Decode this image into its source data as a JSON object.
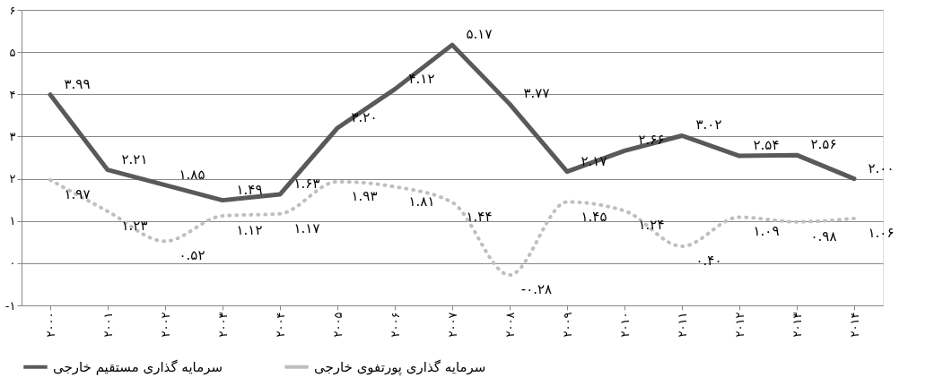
{
  "chart_data": {
    "type": "line",
    "categories": [
      "۲۰۰۰",
      "۲۰۰۱",
      "۲۰۰۲",
      "۲۰۰۳",
      "۲۰۰۴",
      "۲۰۰۵",
      "۲۰۰۶",
      "۲۰۰۷",
      "۲۰۰۸",
      "۲۰۰۹",
      "۲۰۱۰",
      "۲۰۱۱",
      "۲۰۱۲",
      "۲۰۱۳",
      "۲۰۱۴"
    ],
    "series": [
      {
        "name": "سرمایه گذاری مستقیم خارجی",
        "color": "#595959",
        "line_style": "solid",
        "values": [
          3.99,
          2.21,
          1.85,
          1.49,
          1.63,
          3.2,
          4.12,
          5.17,
          3.77,
          2.17,
          2.66,
          3.02,
          2.54,
          2.56,
          2.0
        ],
        "value_labels": [
          "۳.۹۹",
          "۲.۲۱",
          "۱.۸۵",
          "۱.۴۹",
          "۱.۶۳",
          "۳.۲۰",
          "۴.۱۲",
          "۵.۱۷",
          "۳.۷۷",
          "۲.۱۷",
          "۲.۶۶",
          "۳.۰۲",
          "۲.۵۴",
          "۲.۵۶",
          "۲.۰۰"
        ]
      },
      {
        "name": "سرمایه گذاری پورتفوی خارجی",
        "color": "#bfbfbf",
        "line_style": "dotted",
        "values": [
          1.97,
          1.23,
          0.52,
          1.12,
          1.17,
          1.93,
          1.81,
          1.44,
          -0.28,
          1.45,
          1.24,
          0.4,
          1.09,
          0.98,
          1.06
        ],
        "value_labels": [
          "۱.۹۷",
          "۱.۲۳",
          "۰.۵۲",
          "۱.۱۲",
          "۱.۱۷",
          "۱.۹۳",
          "۱.۸۱",
          "۱.۴۴",
          "-۰.۲۸",
          "۱.۴۵",
          "۱.۲۴",
          "۰.۴۰",
          "۱.۰۹",
          "۰.۹۸",
          "۱.۰۶"
        ]
      }
    ],
    "ylim": [
      -1,
      6
    ],
    "yticks": [
      {
        "value": -1,
        "label": "-۱"
      },
      {
        "value": 0,
        "label": "۰"
      },
      {
        "value": 1,
        "label": "۱"
      },
      {
        "value": 2,
        "label": "۲"
      },
      {
        "value": 3,
        "label": "۳"
      },
      {
        "value": 4,
        "label": "۴"
      },
      {
        "value": 5,
        "label": "۵"
      },
      {
        "value": 6,
        "label": "۶"
      }
    ],
    "grid": "y",
    "legend": "bottom",
    "marker": "none"
  }
}
